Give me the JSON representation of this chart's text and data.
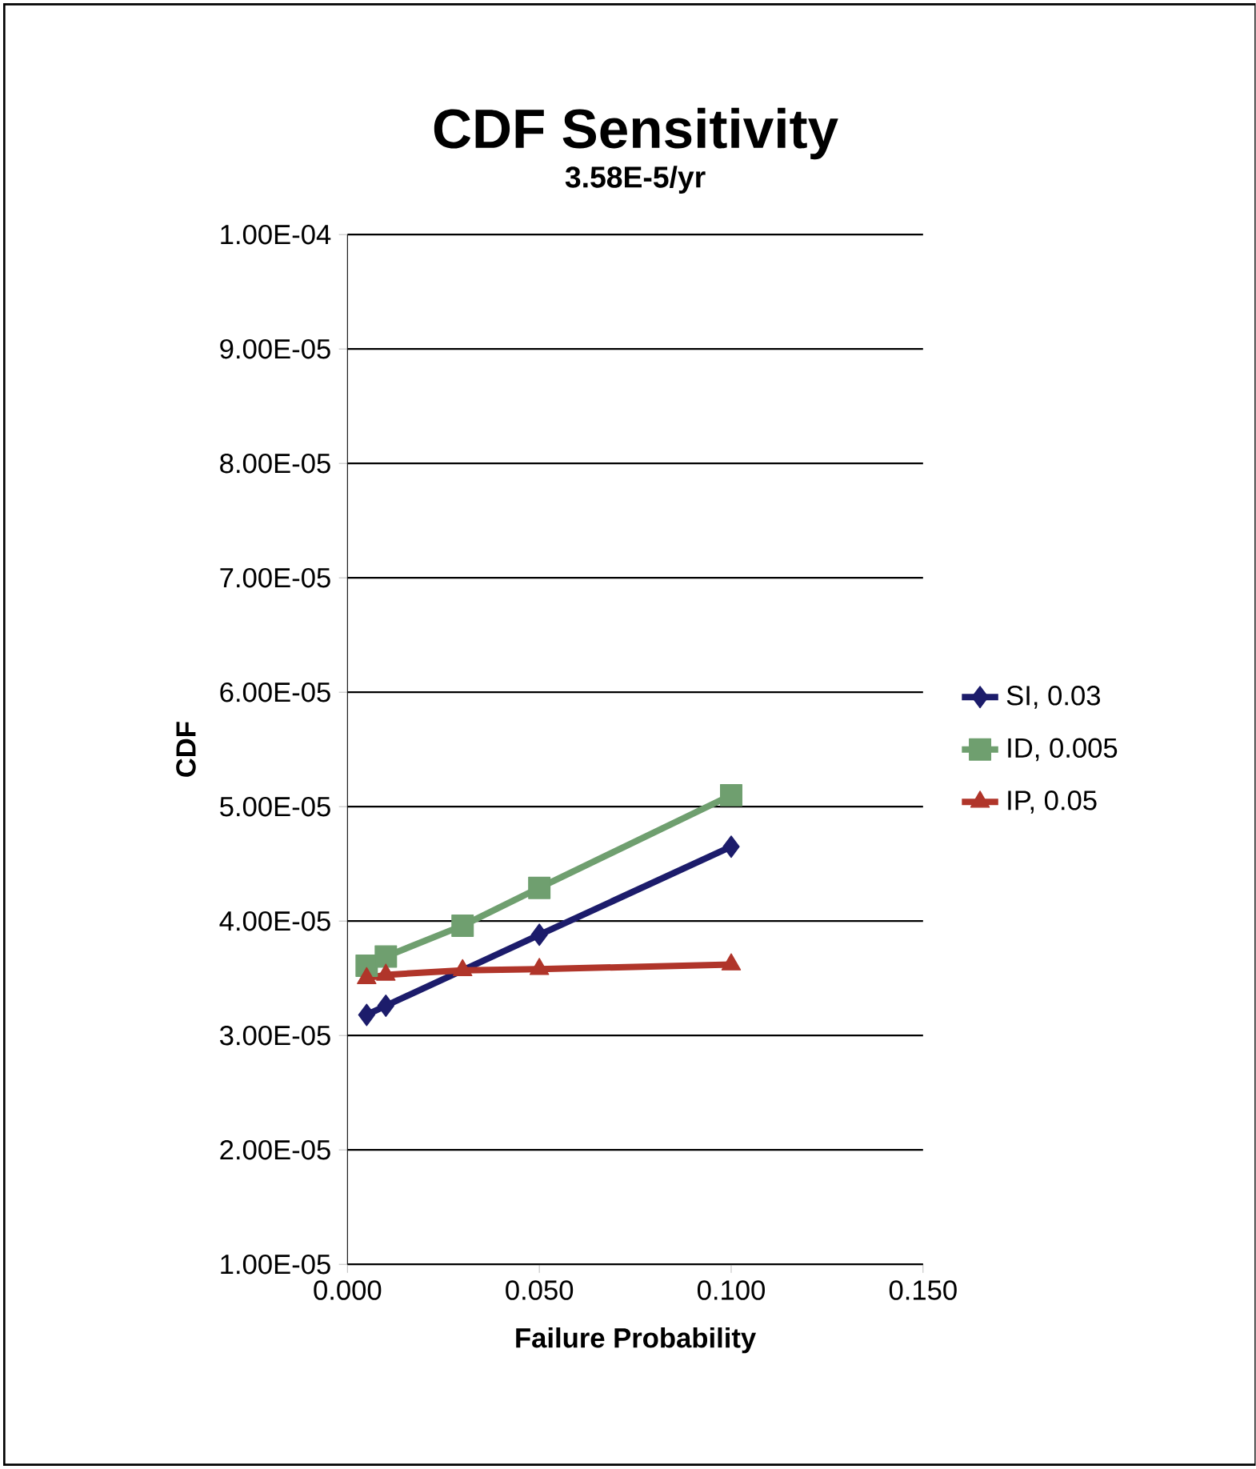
{
  "chart_data": {
    "type": "line",
    "title": "CDF Sensitivity",
    "subtitle": "3.58E-5/yr",
    "xlabel": "Failure Probability",
    "ylabel": "CDF",
    "x": [
      0.005,
      0.01,
      0.03,
      0.05,
      0.1
    ],
    "series": [
      {
        "name": "SI, 0.03",
        "color": "#1c1c6b",
        "marker": "diamond",
        "values": [
          3.18e-05,
          3.26e-05,
          null,
          3.88e-05,
          4.65e-05
        ]
      },
      {
        "name": "ID, 0.005",
        "color": "#6f9f6f",
        "marker": "square",
        "values": [
          3.61e-05,
          3.69e-05,
          3.96e-05,
          4.29e-05,
          5.1e-05
        ]
      },
      {
        "name": "IP, 0.05",
        "color": "#b0352a",
        "marker": "triangle",
        "values": [
          3.5e-05,
          3.53e-05,
          3.57e-05,
          3.58e-05,
          3.62e-05
        ]
      }
    ],
    "xlim": [
      0,
      0.15
    ],
    "xticks": [
      {
        "value": 0,
        "label": "0.000"
      },
      {
        "value": 0.05,
        "label": "0.050"
      },
      {
        "value": 0.1,
        "label": "0.100"
      },
      {
        "value": 0.15,
        "label": "0.150"
      }
    ],
    "ylim": [
      1e-05,
      0.0001
    ],
    "yticks": [
      {
        "value": 1e-05,
        "label": "1.00E-05"
      },
      {
        "value": 2e-05,
        "label": "2.00E-05"
      },
      {
        "value": 3e-05,
        "label": "3.00E-05"
      },
      {
        "value": 4e-05,
        "label": "4.00E-05"
      },
      {
        "value": 5e-05,
        "label": "5.00E-05"
      },
      {
        "value": 6e-05,
        "label": "6.00E-05"
      },
      {
        "value": 7e-05,
        "label": "7.00E-05"
      },
      {
        "value": 8e-05,
        "label": "8.00E-05"
      },
      {
        "value": 9e-05,
        "label": "9.00E-05"
      },
      {
        "value": 0.0001,
        "label": "1.00E-04"
      }
    ],
    "grid": "y",
    "legend": "right"
  }
}
